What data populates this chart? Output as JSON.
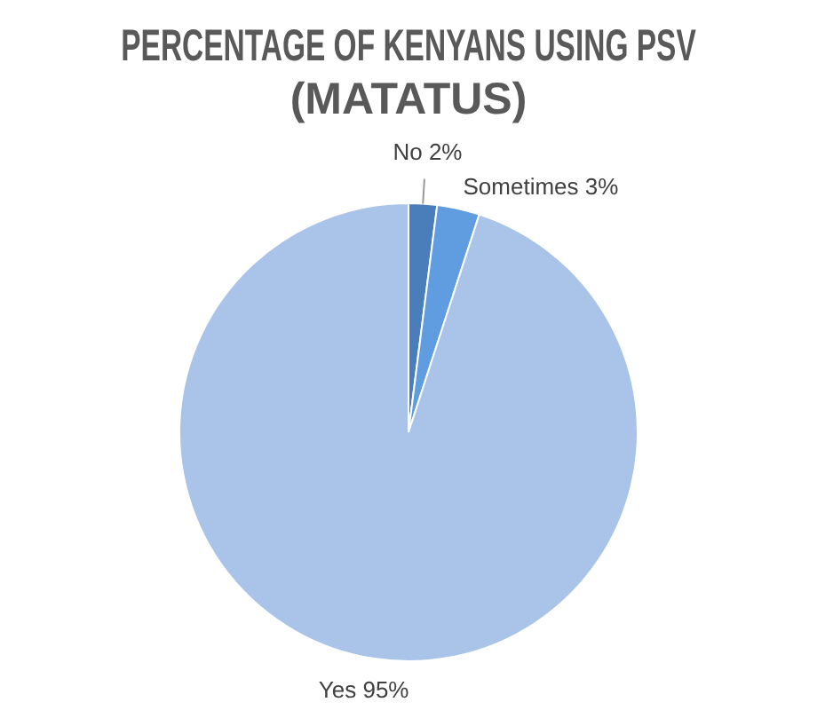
{
  "chart_data": {
    "type": "pie",
    "title": [
      "PERCENTAGE OF KENYANS USING PSV",
      "(MATATUS)"
    ],
    "categories": [
      "No",
      "Sometimes",
      "Yes"
    ],
    "values": [
      2,
      3,
      95
    ],
    "value_labels": [
      "2%",
      "3%",
      "95%"
    ],
    "colors": [
      "#4a7ebb",
      "#5f9de0",
      "#a9c4e8"
    ],
    "legend": false
  }
}
